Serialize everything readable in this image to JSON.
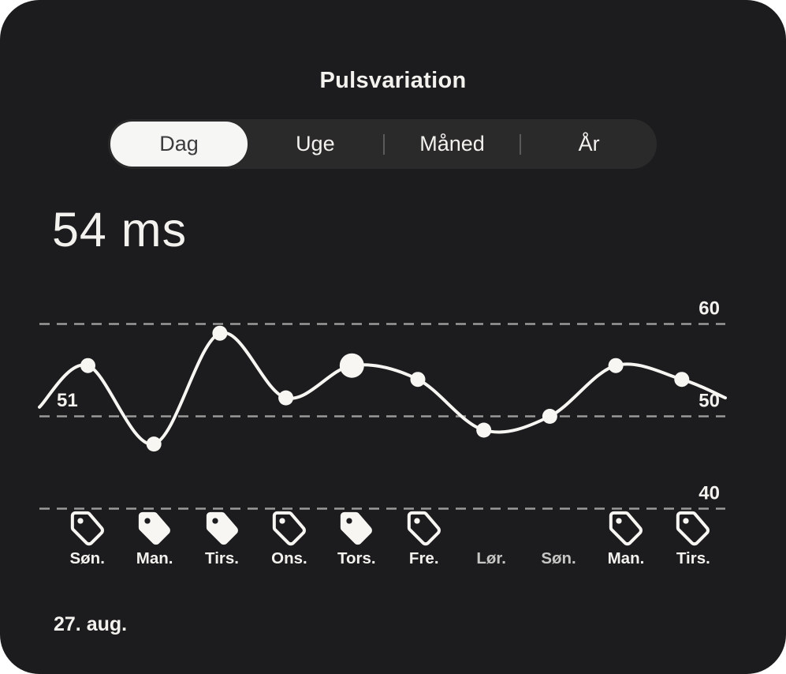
{
  "header": {
    "title": "Pulsvariation"
  },
  "tabs": {
    "items": [
      {
        "label": "Dag",
        "selected": true
      },
      {
        "label": "Uge",
        "selected": false
      },
      {
        "label": "Måned",
        "selected": false
      },
      {
        "label": "År",
        "selected": false
      }
    ]
  },
  "value": {
    "number": "54",
    "unit": "ms",
    "display": "54 ms"
  },
  "chart_data": {
    "type": "line",
    "title": "Pulsvariation",
    "unit": "ms",
    "categories": [
      "Søn.",
      "Man.",
      "Tirs.",
      "Ons.",
      "Tors.",
      "Fre.",
      "Lør.",
      "Søn.",
      "Man.",
      "Tirs."
    ],
    "values": [
      55.5,
      47,
      59,
      52,
      55.5,
      54,
      48.5,
      50,
      55.5,
      54
    ],
    "selected_index": 4,
    "edge_points": {
      "start_value": 51,
      "end_value": 52
    },
    "start_point_label": "51",
    "y_gridlines": [
      60,
      50,
      40
    ],
    "y_gridline_labels": [
      "60",
      "50",
      "40"
    ],
    "ylim": [
      40,
      62
    ],
    "grid_style": "dashed",
    "legend": "none",
    "day_tags": [
      "outline",
      "filled",
      "filled",
      "outline",
      "filled",
      "outline",
      "none",
      "none",
      "outline",
      "outline"
    ]
  },
  "icons": {
    "tag": "tag-icon"
  },
  "footer": {
    "date": "27. aug."
  },
  "colors": {
    "page_bg": "#ffffff",
    "card_bg": "#1c1c1e",
    "tab_bar_bg": "#2a2a2b",
    "selected_tab_bg": "#f6f6f4",
    "selected_tab_text": "#3c3c3e",
    "text": "#f3f2ef",
    "muted_text": "#c6c6c4",
    "gridline": "#9a9a98",
    "line": "#f7f6f3",
    "tab_divider": "#5a5a5a"
  }
}
